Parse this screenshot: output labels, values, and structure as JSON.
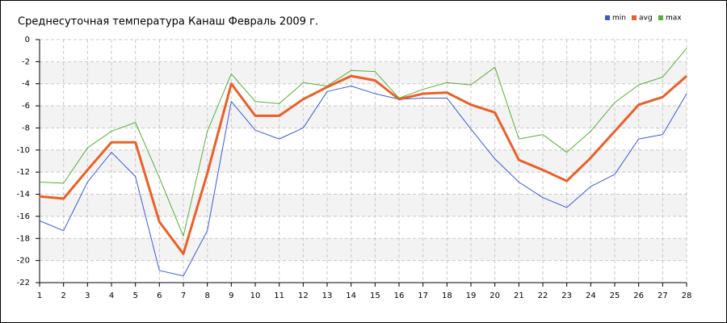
{
  "chart_data": {
    "type": "line",
    "title": "Среднесуточная температура Канаш  Февраль 2009 г.",
    "x": [
      1,
      2,
      3,
      4,
      5,
      6,
      7,
      8,
      9,
      10,
      11,
      12,
      13,
      14,
      15,
      16,
      17,
      18,
      19,
      20,
      21,
      22,
      23,
      24,
      25,
      26,
      27,
      28
    ],
    "xlim": [
      1,
      28
    ],
    "ylim": [
      -22,
      0
    ],
    "yticks": [
      -22,
      -20,
      -18,
      -16,
      -14,
      -12,
      -10,
      -8,
      -6,
      -4,
      -2,
      0
    ],
    "grid": true,
    "legend": "top-right",
    "series": [
      {
        "name": "min",
        "color": "#3a5bd0",
        "values": [
          -16.4,
          -17.3,
          -12.9,
          -10.2,
          -12.4,
          -20.9,
          -21.4,
          -17.3,
          -5.6,
          -8.2,
          -9.0,
          -8.0,
          -4.7,
          -4.2,
          -4.9,
          -5.4,
          -5.3,
          -5.3,
          -8.1,
          -10.8,
          -12.9,
          -14.3,
          -15.2,
          -13.3,
          -12.2,
          -9.0,
          -8.6,
          -4.9
        ]
      },
      {
        "name": "avg",
        "color": "#e8602a",
        "values": [
          -14.2,
          -14.4,
          -11.8,
          -9.3,
          -9.3,
          -16.5,
          -19.4,
          -12.1,
          -4.0,
          -6.9,
          -6.9,
          -5.4,
          -4.3,
          -3.3,
          -3.7,
          -5.4,
          -4.9,
          -4.8,
          -5.9,
          -6.6,
          -10.9,
          -11.8,
          -12.8,
          -10.7,
          -8.3,
          -5.9,
          -5.2,
          -3.3
        ]
      },
      {
        "name": "max",
        "color": "#5aad3a",
        "values": [
          -12.9,
          -13.0,
          -9.8,
          -8.3,
          -7.5,
          -12.5,
          -17.8,
          -8.3,
          -3.1,
          -5.6,
          -5.8,
          -3.9,
          -4.2,
          -2.8,
          -2.9,
          -5.3,
          -4.5,
          -3.9,
          -4.1,
          -2.5,
          -9.0,
          -8.6,
          -10.2,
          -8.3,
          -5.7,
          -4.1,
          -3.4,
          -0.8
        ]
      }
    ]
  }
}
